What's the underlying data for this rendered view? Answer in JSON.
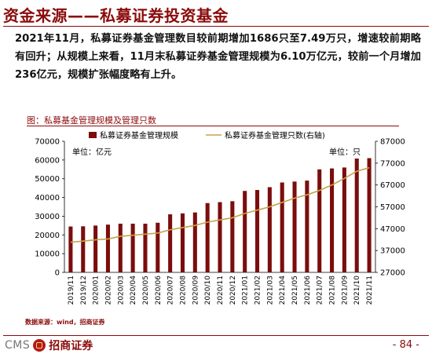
{
  "page": {
    "title": "资金来源——私募证券投资基金",
    "paragraph": "2021年11月，私募证券基金管理数目较前期增加1686只至7.49万只，增速较前期略有回升；从规模上来看，11月末私募证券基金管理规模为6.10万亿元，较前一个月增加236亿元，规模扩张幅度略有上升。",
    "source": "数据来源：wind，招商证券",
    "page_number": "- 84 -",
    "logo": {
      "cms": "CMS",
      "cn": "招商证券"
    }
  },
  "colors": {
    "accent": "#8b0b0b",
    "bar": "#7b0d0d",
    "line": "#c8a24a"
  },
  "chart_data": {
    "type": "bar",
    "title": "图：私募基金管理规模及管理只数",
    "categories": [
      "2019/11",
      "2019/12",
      "2020/01",
      "2020/02",
      "2020/03",
      "2020/04",
      "2020/05",
      "2020/06",
      "2020/07",
      "2020/08",
      "2020/09",
      "2020/10",
      "2020/11",
      "2020/12",
      "2021/01",
      "2021/02",
      "2021/03",
      "2021/04",
      "2021/05",
      "2021/06",
      "2021/07",
      "2021/08",
      "2021/09",
      "2021/10",
      "2021/11"
    ],
    "series": [
      {
        "name": "私募证券基金管理规模",
        "axis": "left",
        "type": "bar",
        "values": [
          24500,
          24600,
          25000,
          25500,
          26000,
          26000,
          26000,
          26500,
          31000,
          31500,
          32000,
          37000,
          37500,
          38000,
          43500,
          44000,
          45500,
          48000,
          48500,
          49000,
          55000,
          55500,
          56000,
          60800,
          61000
        ]
      },
      {
        "name": "私募证券基金管理只数(右轴)",
        "axis": "right",
        "type": "line",
        "values": [
          40800,
          41300,
          41900,
          42300,
          43500,
          44000,
          44500,
          45000,
          46500,
          47500,
          48500,
          50000,
          51000,
          52000,
          54000,
          55500,
          57000,
          59000,
          61000,
          62500,
          64500,
          67000,
          70000,
          73300,
          74900
        ]
      }
    ],
    "left_axis": {
      "unit": "单位：亿元",
      "ylim": [
        0,
        70000
      ],
      "ticks": [
        "0",
        "10000",
        "20000",
        "30000",
        "40000",
        "50000",
        "60000",
        "70000"
      ]
    },
    "right_axis": {
      "unit": "单位：只",
      "ylim": [
        27000,
        87000
      ],
      "ticks": [
        "27000",
        "37000",
        "47000",
        "57000",
        "67000",
        "77000",
        "87000"
      ]
    },
    "grid": false,
    "legend_position": "top"
  }
}
